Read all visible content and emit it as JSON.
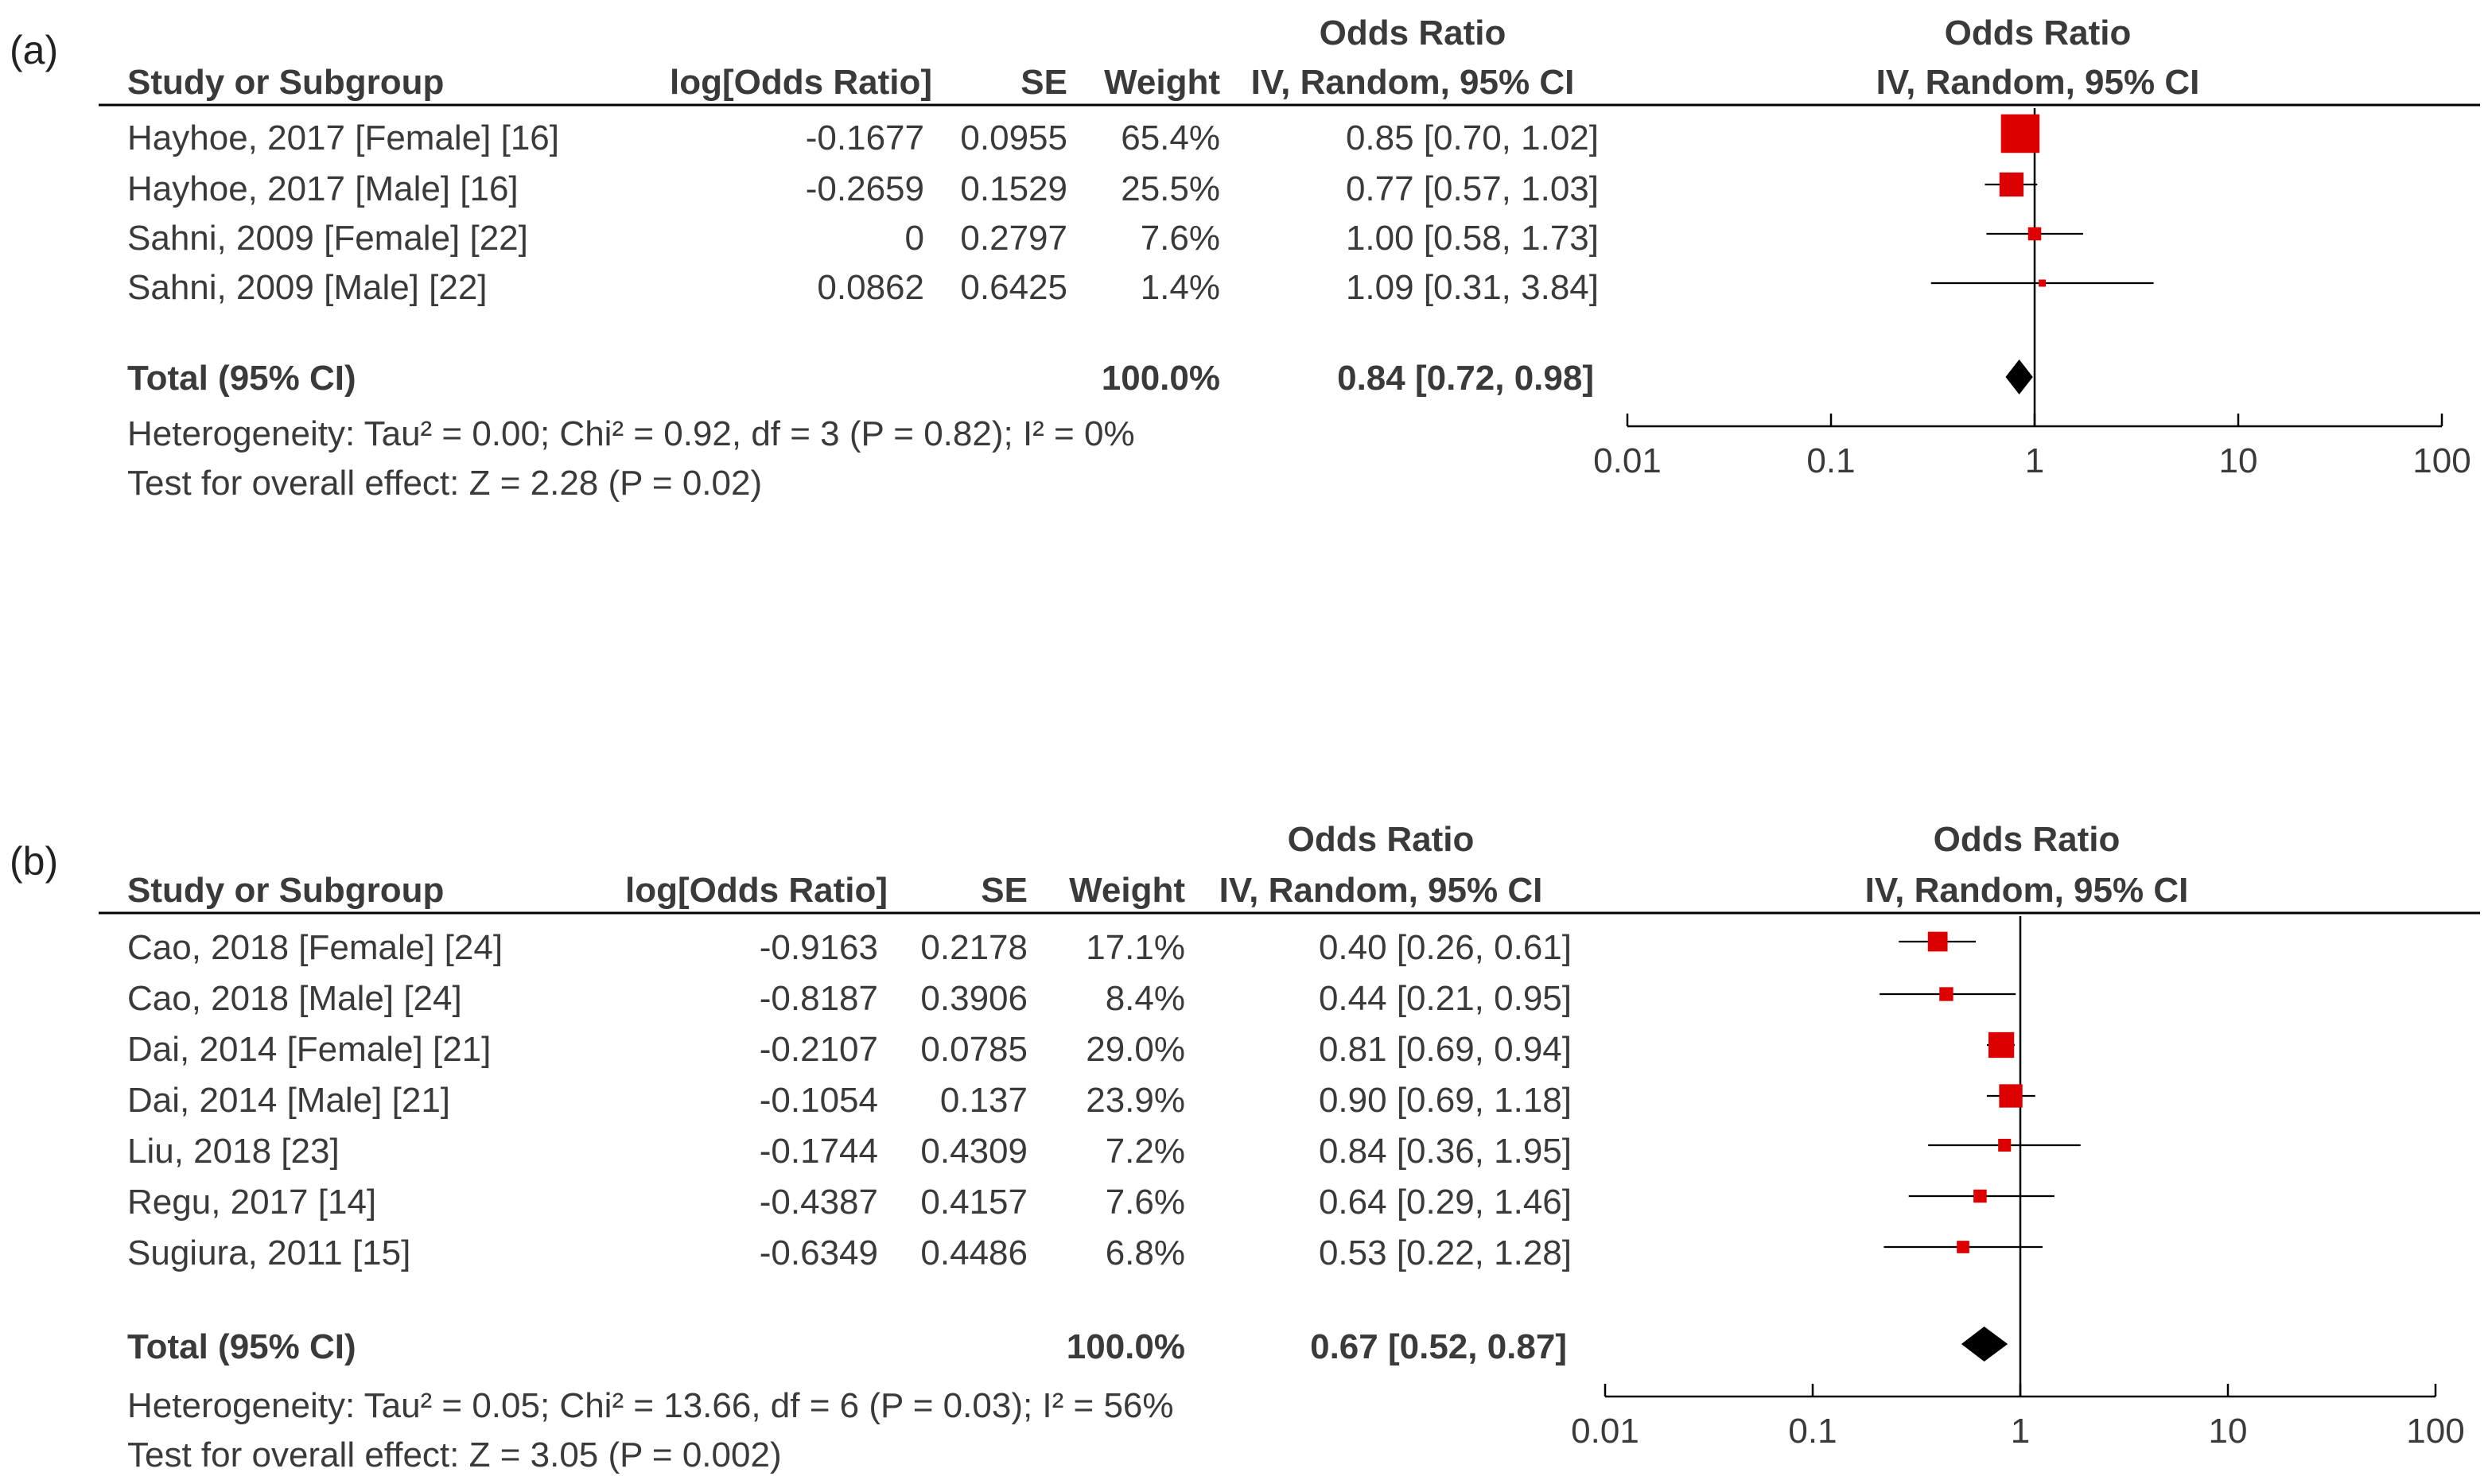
{
  "colors": {
    "marker": "#dd0000",
    "diamond": "#000000",
    "text": "#3a3a3a",
    "line": "#000000"
  },
  "chart_data": [
    {
      "type": "forest",
      "panel_label": "(a)",
      "headers": {
        "study": "Study or Subgroup",
        "logor": "log[Odds Ratio]",
        "se": "SE",
        "weight": "Weight",
        "or_top": "Odds Ratio",
        "or_bottom": "IV, Random, 95% CI",
        "plot_top": "Odds Ratio",
        "plot_bottom": "IV, Random, 95% CI"
      },
      "studies": [
        {
          "name": "Hayhoe, 2017 [Female] [16]",
          "logor": "-0.1677",
          "se": "0.0955",
          "weight": "65.4%",
          "ci_text": "0.85 [0.70, 1.02]",
          "or": 0.85,
          "lo": 0.7,
          "hi": 1.02,
          "w": 65.4
        },
        {
          "name": "Hayhoe, 2017 [Male] [16]",
          "logor": "-0.2659",
          "se": "0.1529",
          "weight": "25.5%",
          "ci_text": "0.77 [0.57, 1.03]",
          "or": 0.77,
          "lo": 0.57,
          "hi": 1.03,
          "w": 25.5
        },
        {
          "name": "Sahni, 2009 [Female] [22]",
          "logor": "0",
          "se": "0.2797",
          "weight": "7.6%",
          "ci_text": "1.00 [0.58, 1.73]",
          "or": 1.0,
          "lo": 0.58,
          "hi": 1.73,
          "w": 7.6
        },
        {
          "name": "Sahni, 2009 [Male] [22]",
          "logor": "0.0862",
          "se": "0.6425",
          "weight": "1.4%",
          "ci_text": "1.09 [0.31, 3.84]",
          "or": 1.09,
          "lo": 0.31,
          "hi": 3.84,
          "w": 1.4
        }
      ],
      "total": {
        "label": "Total (95% CI)",
        "weight": "100.0%",
        "ci_text": "0.84 [0.72, 0.98]",
        "or": 0.84,
        "lo": 0.72,
        "hi": 0.98
      },
      "heterogeneity": "Heterogeneity: Tau² = 0.00; Chi² = 0.92, df = 3 (P = 0.82); I² = 0%",
      "overall_effect": "Test for overall effect: Z = 2.28 (P = 0.02)",
      "axis": {
        "scale": "log",
        "range": [
          0.01,
          100
        ],
        "ticks": [
          "0.01",
          "0.1",
          "1",
          "10",
          "100"
        ]
      }
    },
    {
      "type": "forest",
      "panel_label": "(b)",
      "headers": {
        "study": "Study or Subgroup",
        "logor": "log[Odds Ratio]",
        "se": "SE",
        "weight": "Weight",
        "or_top": "Odds Ratio",
        "or_bottom": "IV, Random, 95% CI",
        "plot_top": "Odds Ratio",
        "plot_bottom": "IV, Random, 95% CI"
      },
      "studies": [
        {
          "name": "Cao, 2018 [Female] [24]",
          "logor": "-0.9163",
          "se": "0.2178",
          "weight": "17.1%",
          "ci_text": "0.40 [0.26, 0.61]",
          "or": 0.4,
          "lo": 0.26,
          "hi": 0.61,
          "w": 17.1
        },
        {
          "name": "Cao, 2018 [Male] [24]",
          "logor": "-0.8187",
          "se": "0.3906",
          "weight": "8.4%",
          "ci_text": "0.44 [0.21, 0.95]",
          "or": 0.44,
          "lo": 0.21,
          "hi": 0.95,
          "w": 8.4
        },
        {
          "name": "Dai, 2014 [Female] [21]",
          "logor": "-0.2107",
          "se": "0.0785",
          "weight": "29.0%",
          "ci_text": "0.81 [0.69, 0.94]",
          "or": 0.81,
          "lo": 0.69,
          "hi": 0.94,
          "w": 29.0
        },
        {
          "name": "Dai, 2014 [Male] [21]",
          "logor": "-0.1054",
          "se": "0.137",
          "weight": "23.9%",
          "ci_text": "0.90 [0.69, 1.18]",
          "or": 0.9,
          "lo": 0.69,
          "hi": 1.18,
          "w": 23.9
        },
        {
          "name": "Liu, 2018 [23]",
          "logor": "-0.1744",
          "se": "0.4309",
          "weight": "7.2%",
          "ci_text": "0.84 [0.36, 1.95]",
          "or": 0.84,
          "lo": 0.36,
          "hi": 1.95,
          "w": 7.2
        },
        {
          "name": "Regu, 2017 [14]",
          "logor": "-0.4387",
          "se": "0.4157",
          "weight": "7.6%",
          "ci_text": "0.64 [0.29, 1.46]",
          "or": 0.64,
          "lo": 0.29,
          "hi": 1.46,
          "w": 7.6
        },
        {
          "name": "Sugiura, 2011 [15]",
          "logor": "-0.6349",
          "se": "0.4486",
          "weight": "6.8%",
          "ci_text": "0.53 [0.22, 1.28]",
          "or": 0.53,
          "lo": 0.22,
          "hi": 1.28,
          "w": 6.8
        }
      ],
      "total": {
        "label": "Total (95% CI)",
        "weight": "100.0%",
        "ci_text": "0.67 [0.52, 0.87]",
        "or": 0.67,
        "lo": 0.52,
        "hi": 0.87
      },
      "heterogeneity": "Heterogeneity: Tau² = 0.05; Chi² = 13.66, df = 6 (P = 0.03); I² = 56%",
      "overall_effect": "Test for overall effect: Z = 3.05 (P = 0.002)",
      "axis": {
        "scale": "log",
        "range": [
          0.01,
          100
        ],
        "ticks": [
          "0.01",
          "0.1",
          "1",
          "10",
          "100"
        ]
      }
    }
  ]
}
